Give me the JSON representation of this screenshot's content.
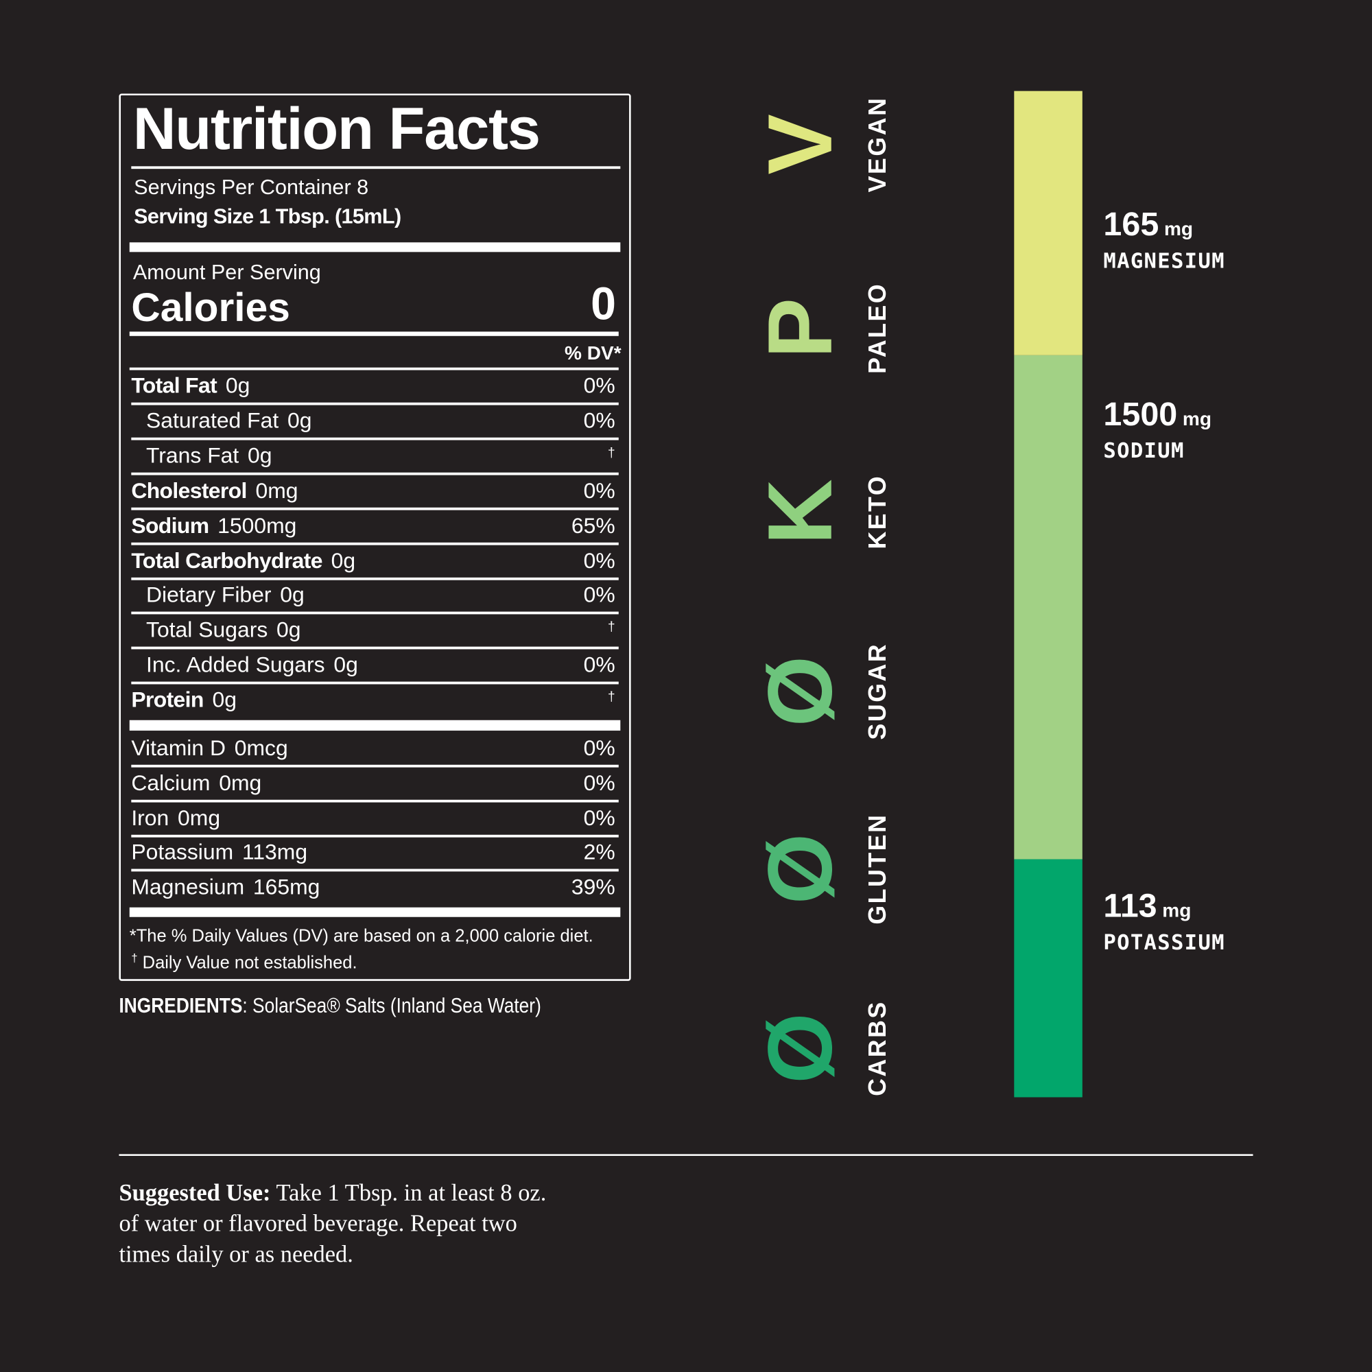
{
  "label": {
    "title": "Nutrition Facts",
    "servings": "Servings Per Container 8",
    "serving_size": "Serving Size 1 Tbsp. (15mL)",
    "amount_per_serving": "Amount Per Serving",
    "calories_label": "Calories",
    "calories_value": 0,
    "dv_header": "% DV*",
    "rows": [
      {
        "name": "Total Fat",
        "amount": "0g",
        "dv": "0%",
        "bold": true,
        "indent": false
      },
      {
        "name": "Saturated Fat",
        "amount": "0g",
        "dv": "0%",
        "bold": false,
        "indent": true
      },
      {
        "name": "Trans Fat",
        "amount": "0g",
        "dv": "†",
        "bold": false,
        "indent": true
      },
      {
        "name": "Cholesterol",
        "amount": "0mg",
        "dv": "0%",
        "bold": true,
        "indent": false
      },
      {
        "name": "Sodium",
        "amount": "1500mg",
        "dv": "65%",
        "bold": true,
        "indent": false
      },
      {
        "name": "Total Carbohydrate",
        "amount": "0g",
        "dv": "0%",
        "bold": true,
        "indent": false
      },
      {
        "name": "Dietary Fiber",
        "amount": "0g",
        "dv": "0%",
        "bold": false,
        "indent": true
      },
      {
        "name": "Total Sugars",
        "amount": "0g",
        "dv": "†",
        "bold": false,
        "indent": true
      },
      {
        "name": "Inc. Added Sugars",
        "amount": "0g",
        "dv": "0%",
        "bold": false,
        "indent": true
      },
      {
        "name": "Protein",
        "amount": "0g",
        "dv": "†",
        "bold": true,
        "indent": false
      }
    ],
    "vitamins": [
      {
        "name": "Vitamin D",
        "amount": "0mcg",
        "dv": "0%"
      },
      {
        "name": "Calcium",
        "amount": "0mg",
        "dv": "0%"
      },
      {
        "name": "Iron",
        "amount": "0mg",
        "dv": "0%"
      },
      {
        "name": "Potassium",
        "amount": "113mg",
        "dv": "2%"
      },
      {
        "name": "Magnesium",
        "amount": "165mg",
        "dv": "39%"
      }
    ],
    "footnote1": "*The % Daily Values (DV) are based on a 2,000 calorie diet.",
    "footnote2_mark": "†",
    "footnote2": "Daily Value not established."
  },
  "ingredients": {
    "label": "INGREDIENTS",
    "text": ": SolarSea® Salts (Inland Sea Water)"
  },
  "badges": [
    {
      "symbol": "V",
      "label": "VEGAN",
      "color": "#dfe780"
    },
    {
      "symbol": "P",
      "label": "PALEO",
      "color": "#b9dc86"
    },
    {
      "symbol": "K",
      "label": "KETO",
      "color": "#8fd07f"
    },
    {
      "symbol": "Ø",
      "label": "SUGAR",
      "color": "#6cc47c"
    },
    {
      "symbol": "Ø",
      "label": "GLUTEN",
      "color": "#4cb674"
    },
    {
      "symbol": "Ø",
      "label": "CARBS",
      "color": "#20a66a"
    }
  ],
  "minerals": [
    {
      "amount": "165",
      "unit": "mg",
      "name": "MAGNESIUM",
      "color": "#e2e67f"
    },
    {
      "amount": "1500",
      "unit": "mg",
      "name": "SODIUM",
      "color": "#a2d185"
    },
    {
      "amount": "113",
      "unit": "mg",
      "name": "POTASSIUM",
      "color": "#02a66b"
    }
  ],
  "suggested_use": {
    "label": "Suggested Use:",
    "text": "Take 1 Tbsp. in at least 8 oz. of water or flavored beverage. Repeat two times daily or as needed."
  }
}
